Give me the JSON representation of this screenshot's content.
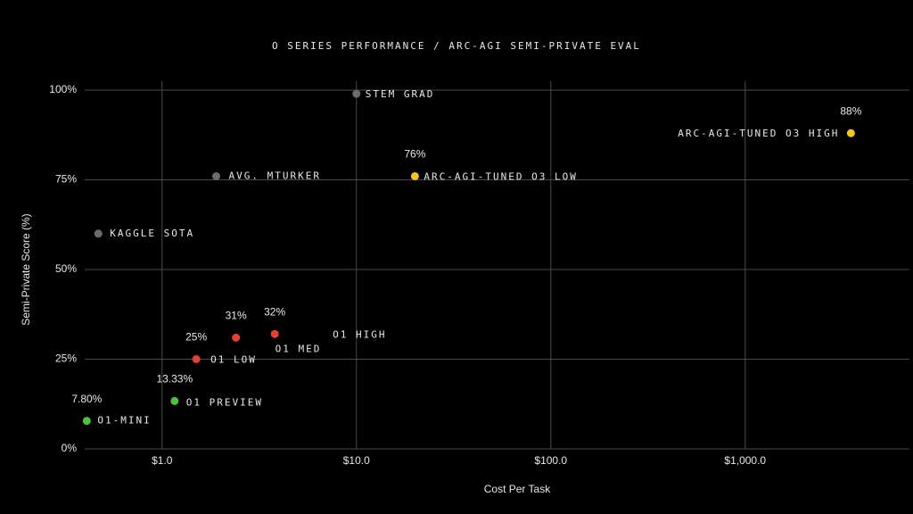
{
  "chart_data": {
    "type": "scatter",
    "title": "O SERIES PERFORMANCE / ARC-AGI SEMI-PRIVATE EVAL",
    "x_label": "Cost Per Task",
    "y_label": "Semi-Private Score (%)",
    "x_scale": "log",
    "grid": true,
    "xlim": [
      0.4,
      7000
    ],
    "ylim": [
      0,
      100
    ],
    "xticks": [
      {
        "value": 1,
        "label": "$1.0"
      },
      {
        "value": 10,
        "label": "$10.0"
      },
      {
        "value": 100,
        "label": "$100.0"
      },
      {
        "value": 1000,
        "label": "$1,000.0"
      }
    ],
    "yticks": [
      {
        "value": 0,
        "label": "0%"
      },
      {
        "value": 25,
        "label": "25%"
      },
      {
        "value": 50,
        "label": "50%"
      },
      {
        "value": 75,
        "label": "75%"
      },
      {
        "value": 100,
        "label": "100%"
      }
    ],
    "points": [
      {
        "label": "O1-MINI",
        "x": 0.41,
        "y": 7.8,
        "value_label": "7.80%",
        "color": "#4cc13c"
      },
      {
        "label": "O1 PREVIEW",
        "x": 1.16,
        "y": 13.33,
        "value_label": "13.33%",
        "color": "#4cc13c"
      },
      {
        "label": "O1 LOW",
        "x": 1.5,
        "y": 25,
        "value_label": "25%",
        "color": "#e8402f"
      },
      {
        "label": "O1 MED",
        "x": 2.4,
        "y": 31,
        "value_label": "31%",
        "color": "#e8402f"
      },
      {
        "label": "O1 HIGH",
        "x": 3.8,
        "y": 32,
        "value_label": "32%",
        "color": "#e8402f"
      },
      {
        "label": "STEM GRAD",
        "x": 10,
        "y": 99,
        "color": "#6b6b6b"
      },
      {
        "label": "AVG. MTURKER",
        "x": 1.9,
        "y": 76,
        "color": "#6b6b6b"
      },
      {
        "label": "KAGGLE SOTA",
        "x": 0.47,
        "y": 60,
        "color": "#6b6b6b"
      },
      {
        "label": "ARC-AGI-TUNED O3 LOW",
        "x": 20,
        "y": 76,
        "value_label": "76%",
        "color": "#f5c518"
      },
      {
        "label": "ARC-AGI-TUNED O3 HIGH",
        "x": 3500,
        "y": 88,
        "value_label": "88%",
        "color": "#f5c518"
      }
    ]
  }
}
